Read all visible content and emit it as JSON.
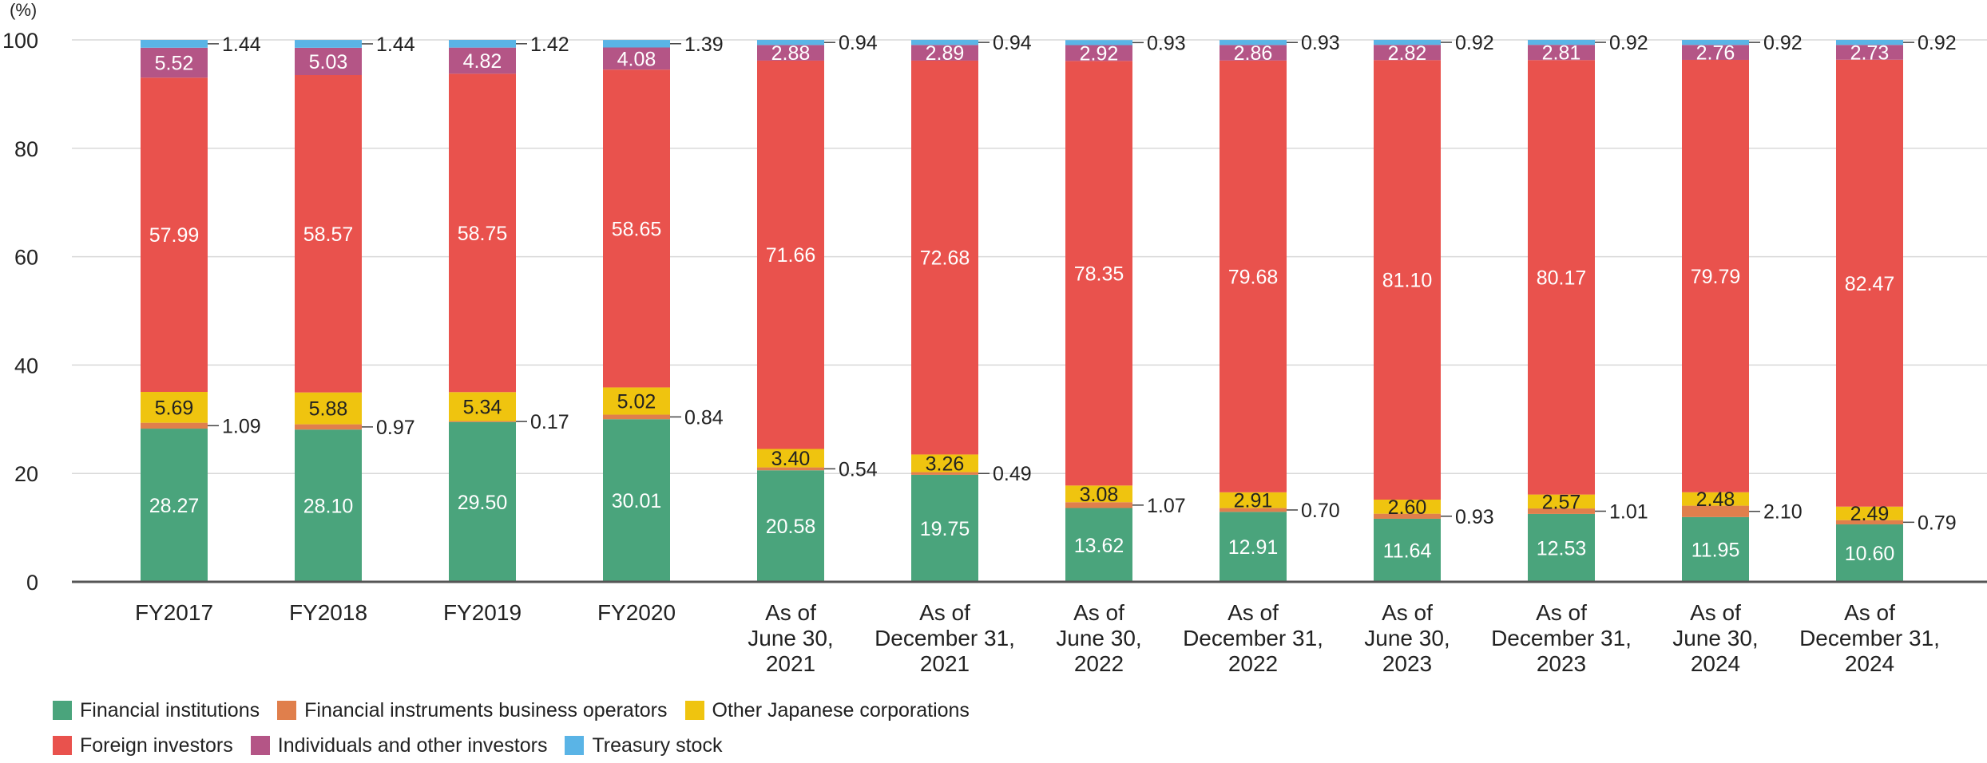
{
  "chart_data": {
    "type": "bar",
    "stacked": true,
    "unit_label": "(%)",
    "ylim": [
      0,
      100
    ],
    "yticks": [
      0,
      20,
      40,
      60,
      80,
      100
    ],
    "grid": true,
    "legend_position": "bottom-left",
    "categories": [
      [
        "FY2017"
      ],
      [
        "FY2018"
      ],
      [
        "FY2019"
      ],
      [
        "FY2020"
      ],
      [
        "As of",
        "June 30,",
        "2021"
      ],
      [
        "As of",
        "December 31,",
        "2021"
      ],
      [
        "As of",
        "June 30,",
        "2022"
      ],
      [
        "As of",
        "December 31,",
        "2022"
      ],
      [
        "As of",
        "June 30,",
        "2023"
      ],
      [
        "As of",
        "December 31,",
        "2023"
      ],
      [
        "As of",
        "June 30,",
        "2024"
      ],
      [
        "As of",
        "December 31,",
        "2024"
      ]
    ],
    "series": [
      {
        "name": "Financial institutions",
        "color": "#4aa47c",
        "values": [
          28.27,
          28.1,
          29.5,
          30.01,
          20.58,
          19.75,
          13.62,
          12.91,
          11.64,
          12.53,
          11.95,
          10.6
        ]
      },
      {
        "name": "Financial instruments business operators",
        "color": "#e07f4c",
        "values": [
          1.09,
          0.97,
          0.17,
          0.84,
          0.54,
          0.49,
          1.07,
          0.7,
          0.93,
          1.01,
          2.1,
          0.79
        ]
      },
      {
        "name": "Other Japanese corporations",
        "color": "#efc40f",
        "values": [
          5.69,
          5.88,
          5.34,
          5.02,
          3.4,
          3.26,
          3.08,
          2.91,
          2.6,
          2.57,
          2.48,
          2.49
        ]
      },
      {
        "name": "Foreign investors",
        "color": "#e9524d",
        "values": [
          57.99,
          58.57,
          58.75,
          58.65,
          71.66,
          72.68,
          78.35,
          79.68,
          81.1,
          80.17,
          79.79,
          82.47
        ]
      },
      {
        "name": "Individuals and other investors",
        "color": "#b45586",
        "values": [
          5.52,
          5.03,
          4.82,
          4.08,
          2.88,
          2.89,
          2.92,
          2.86,
          2.82,
          2.81,
          2.76,
          2.73
        ]
      },
      {
        "name": "Treasury stock",
        "color": "#5ab4e6",
        "values": [
          1.44,
          1.44,
          1.42,
          1.39,
          0.94,
          0.94,
          0.93,
          0.93,
          0.92,
          0.92,
          0.92,
          0.92
        ]
      }
    ]
  }
}
